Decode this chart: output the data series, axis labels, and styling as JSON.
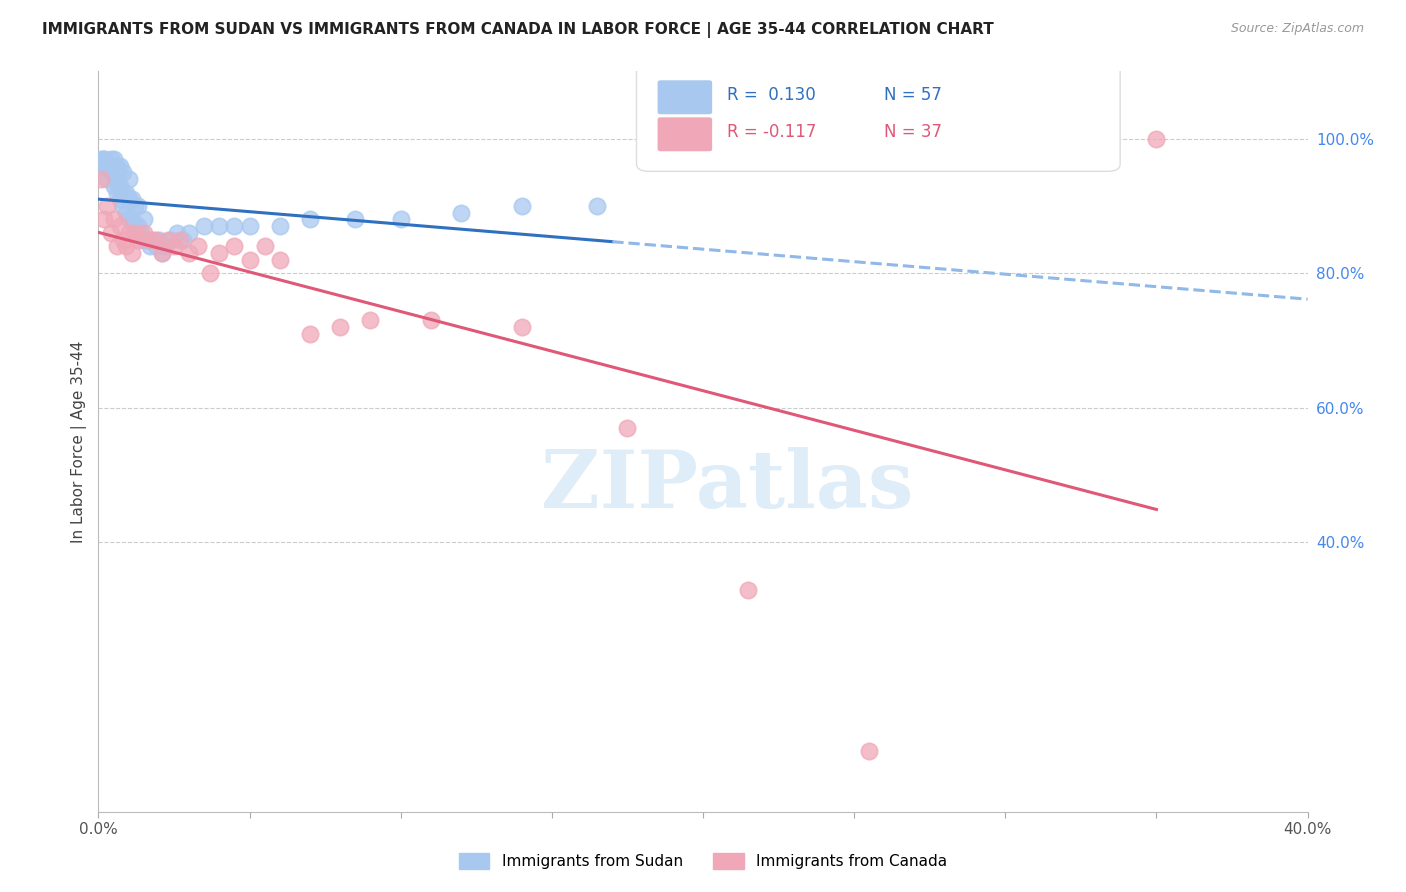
{
  "title": "IMMIGRANTS FROM SUDAN VS IMMIGRANTS FROM CANADA IN LABOR FORCE | AGE 35-44 CORRELATION CHART",
  "source_text": "Source: ZipAtlas.com",
  "ylabel": "In Labor Force | Age 35-44",
  "x_min": 0.0,
  "x_max": 0.4,
  "y_min": 0.0,
  "y_max": 1.1,
  "sudan_R": 0.13,
  "sudan_N": 57,
  "canada_R": -0.117,
  "canada_N": 37,
  "sudan_color": "#a8c8f0",
  "canada_color": "#f0a8b8",
  "sudan_line_color": "#3070c0",
  "canada_line_color": "#e05878",
  "trend_ext_color": "#90b8e8",
  "watermark_text": "ZIPatlas",
  "legend_sudan_label": "Immigrants from Sudan",
  "legend_canada_label": "Immigrants from Canada",
  "sudan_x": [
    0.001,
    0.001,
    0.002,
    0.002,
    0.002,
    0.003,
    0.003,
    0.004,
    0.004,
    0.005,
    0.005,
    0.005,
    0.006,
    0.006,
    0.006,
    0.007,
    0.007,
    0.007,
    0.008,
    0.008,
    0.008,
    0.009,
    0.009,
    0.01,
    0.01,
    0.01,
    0.011,
    0.011,
    0.012,
    0.012,
    0.013,
    0.013,
    0.014,
    0.015,
    0.015,
    0.016,
    0.017,
    0.018,
    0.019,
    0.02,
    0.021,
    0.022,
    0.024,
    0.026,
    0.028,
    0.03,
    0.035,
    0.04,
    0.045,
    0.05,
    0.06,
    0.07,
    0.085,
    0.1,
    0.12,
    0.14,
    0.165
  ],
  "sudan_y": [
    0.97,
    0.96,
    0.97,
    0.96,
    0.97,
    0.94,
    0.96,
    0.95,
    0.97,
    0.93,
    0.95,
    0.97,
    0.92,
    0.94,
    0.96,
    0.91,
    0.93,
    0.96,
    0.9,
    0.92,
    0.95,
    0.89,
    0.92,
    0.88,
    0.91,
    0.94,
    0.88,
    0.91,
    0.87,
    0.9,
    0.87,
    0.9,
    0.86,
    0.85,
    0.88,
    0.85,
    0.84,
    0.85,
    0.84,
    0.85,
    0.83,
    0.84,
    0.85,
    0.86,
    0.85,
    0.86,
    0.87,
    0.87,
    0.87,
    0.87,
    0.87,
    0.88,
    0.88,
    0.88,
    0.89,
    0.9,
    0.9
  ],
  "canada_x": [
    0.001,
    0.002,
    0.003,
    0.004,
    0.005,
    0.006,
    0.007,
    0.008,
    0.009,
    0.01,
    0.011,
    0.012,
    0.013,
    0.015,
    0.017,
    0.019,
    0.021,
    0.023,
    0.025,
    0.027,
    0.03,
    0.033,
    0.037,
    0.04,
    0.045,
    0.05,
    0.055,
    0.06,
    0.07,
    0.08,
    0.09,
    0.11,
    0.14,
    0.175,
    0.215,
    0.255,
    0.35
  ],
  "canada_y": [
    0.94,
    0.88,
    0.9,
    0.86,
    0.88,
    0.84,
    0.87,
    0.85,
    0.84,
    0.86,
    0.83,
    0.86,
    0.85,
    0.86,
    0.85,
    0.85,
    0.83,
    0.85,
    0.84,
    0.85,
    0.83,
    0.84,
    0.8,
    0.83,
    0.84,
    0.82,
    0.84,
    0.82,
    0.71,
    0.72,
    0.73,
    0.73,
    0.72,
    0.57,
    0.33,
    0.09,
    1.0
  ]
}
